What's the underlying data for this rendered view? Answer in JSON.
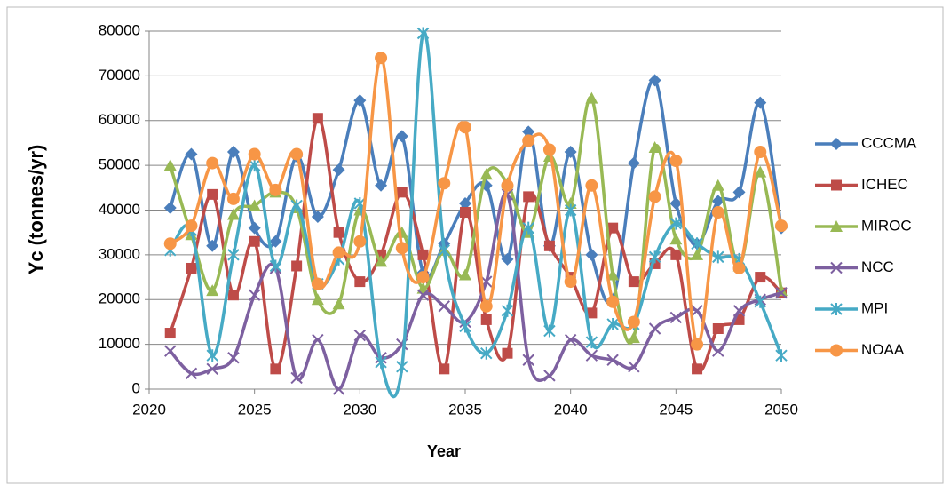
{
  "chart_data": {
    "type": "line",
    "x_label": "Year",
    "y_label": "Yc (tonnes/yr)",
    "x": [
      2021,
      2022,
      2023,
      2024,
      2025,
      2026,
      2027,
      2028,
      2029,
      2030,
      2031,
      2032,
      2033,
      2034,
      2035,
      2036,
      2037,
      2038,
      2039,
      2040,
      2041,
      2042,
      2043,
      2044,
      2045,
      2046,
      2047,
      2048,
      2049,
      2050
    ],
    "xlim": [
      2020,
      2050
    ],
    "xticks": [
      2020,
      2025,
      2030,
      2035,
      2040,
      2045,
      2050
    ],
    "ylim": [
      0,
      80000
    ],
    "yticks": [
      0,
      10000,
      20000,
      30000,
      40000,
      50000,
      60000,
      70000,
      80000
    ],
    "grid": true,
    "smooth": true,
    "legend": "right",
    "series": [
      {
        "name": "CCCMA",
        "color": "#4a7ebb",
        "marker": "diamond",
        "values": [
          40500,
          52500,
          32000,
          53000,
          36000,
          33000,
          52000,
          38500,
          49000,
          64500,
          45500,
          56500,
          26000,
          32500,
          41500,
          45500,
          29000,
          57500,
          32000,
          53000,
          30000,
          20000,
          50500,
          69000,
          41500,
          32500,
          42000,
          44000,
          64000,
          36000
        ]
      },
      {
        "name": "ICHEC",
        "color": "#be4b48",
        "marker": "square",
        "values": [
          12500,
          27000,
          43500,
          21000,
          33000,
          4500,
          27500,
          60500,
          35000,
          24000,
          30000,
          44000,
          30000,
          4500,
          39500,
          15500,
          8000,
          43000,
          32000,
          25000,
          17000,
          36000,
          24000,
          28000,
          30000,
          4500,
          13500,
          15500,
          25000,
          21500
        ]
      },
      {
        "name": "MIROC",
        "color": "#98b954",
        "marker": "triangle",
        "values": [
          50000,
          34500,
          22000,
          39000,
          41000,
          44000,
          40500,
          20000,
          19000,
          40000,
          28500,
          35000,
          22500,
          31000,
          25500,
          48000,
          46000,
          35000,
          52000,
          41500,
          65000,
          25500,
          11500,
          54000,
          33500,
          30000,
          45500,
          27500,
          48500,
          22000
        ]
      },
      {
        "name": "NCC",
        "color": "#7d60a0",
        "marker": "x",
        "values": [
          8500,
          3500,
          4500,
          7000,
          21000,
          27000,
          2500,
          11000,
          0,
          12000,
          7000,
          10000,
          21000,
          18500,
          15000,
          24000,
          43500,
          6500,
          3000,
          11000,
          7500,
          6500,
          5000,
          13500,
          16000,
          17500,
          8500,
          17500,
          20000,
          21500
        ]
      },
      {
        "name": "MPI",
        "color": "#46aac5",
        "marker": "star",
        "values": [
          31000,
          35500,
          7500,
          30000,
          50000,
          27500,
          41000,
          23500,
          29000,
          41500,
          6000,
          5000,
          79500,
          31000,
          14000,
          8000,
          17500,
          36000,
          13000,
          40000,
          10500,
          14500,
          14500,
          29500,
          37000,
          32500,
          29500,
          29000,
          19500,
          7500
        ]
      },
      {
        "name": "NOAA",
        "color": "#f79646",
        "marker": "circle",
        "values": [
          32500,
          36500,
          50500,
          42500,
          52500,
          44500,
          52500,
          23500,
          30500,
          33000,
          74000,
          31500,
          25000,
          46000,
          58500,
          18500,
          45500,
          55500,
          53500,
          24000,
          45500,
          19500,
          15000,
          43000,
          51000,
          10000,
          39500,
          27000,
          53000,
          36500
        ]
      }
    ]
  }
}
